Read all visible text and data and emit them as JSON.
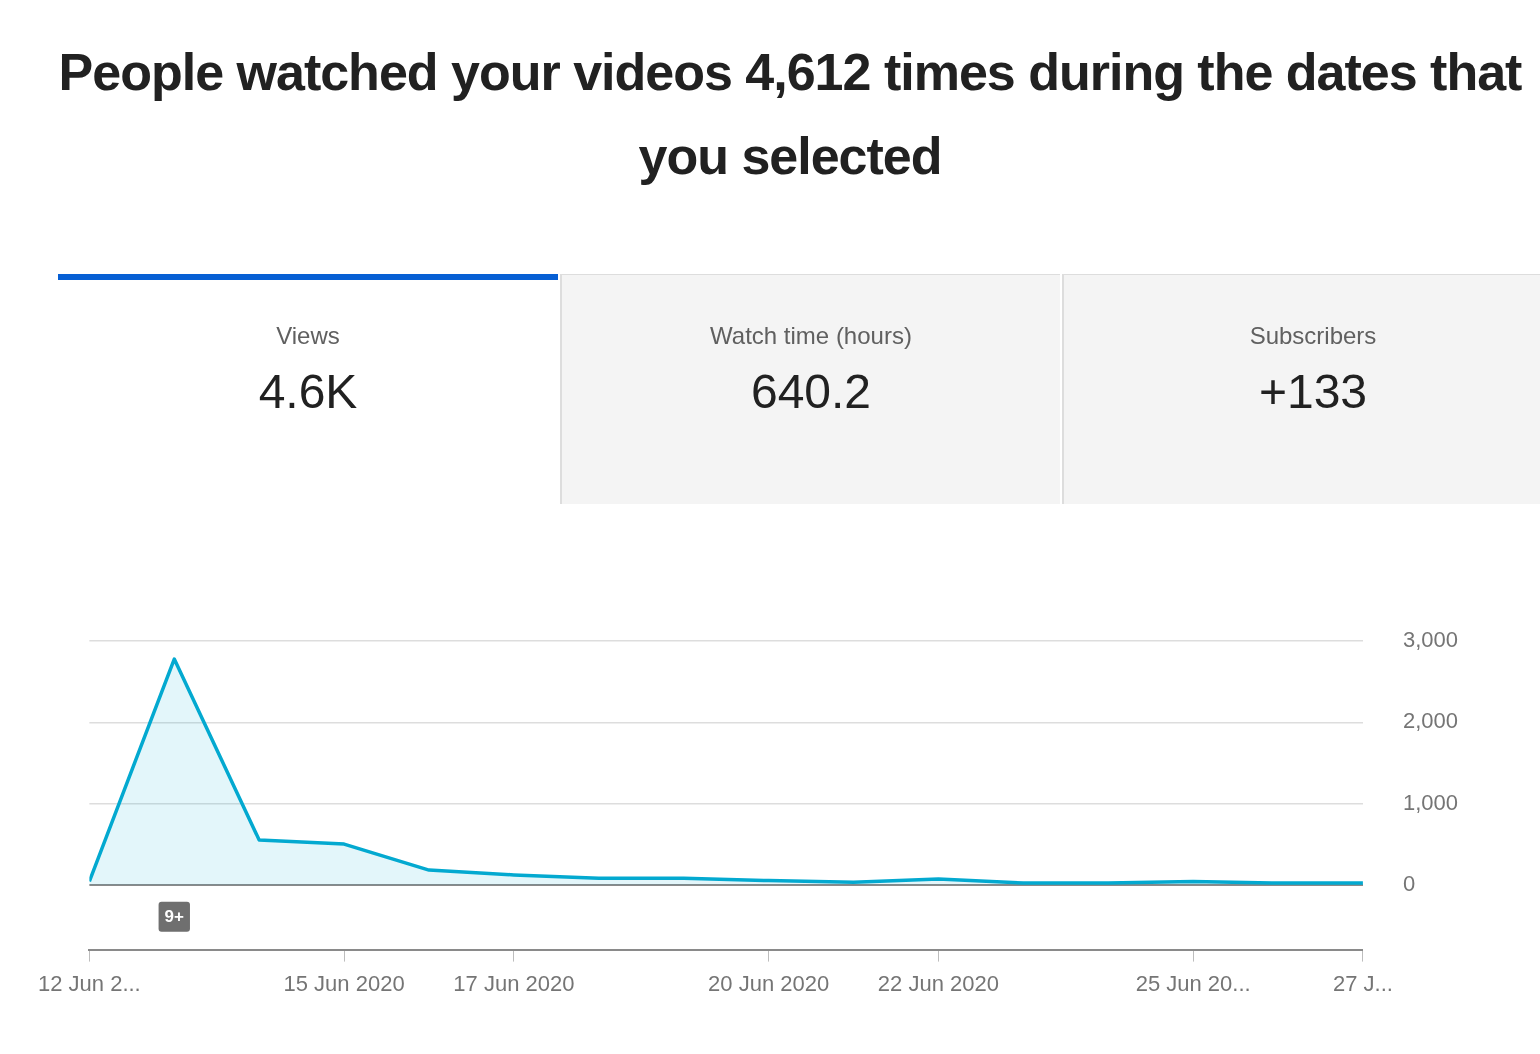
{
  "chart_data": {
    "type": "area",
    "title": "People watched your videos 4,612 times during the dates that you selected",
    "annotations": [
      "Views",
      "4.6K",
      "Watch time (hours)",
      "640.2",
      "Subscribers",
      "+133",
      {
        "text": "9+",
        "x": "2020-06-13"
      }
    ],
    "x": [
      "2020-06-12",
      "2020-06-13",
      "2020-06-14",
      "2020-06-15",
      "2020-06-16",
      "2020-06-17",
      "2020-06-18",
      "2020-06-19",
      "2020-06-20",
      "2020-06-21",
      "2020-06-22",
      "2020-06-23",
      "2020-06-24",
      "2020-06-25",
      "2020-06-26",
      "2020-06-27"
    ],
    "series": [
      {
        "color": "#03a9d0",
        "values": [
          40,
          2780,
          550,
          500,
          180,
          120,
          80,
          80,
          50,
          30,
          70,
          20,
          20,
          40,
          20,
          20
        ]
      }
    ],
    "xlim": [
      "2020-06-12",
      "2020-06-27"
    ],
    "xticks": [
      {
        "value": "2020-06-12",
        "label": "12 Jun 2..."
      },
      {
        "value": "2020-06-15",
        "label": "15 Jun 2020"
      },
      {
        "value": "2020-06-17",
        "label": "17 Jun 2020"
      },
      {
        "value": "2020-06-20",
        "label": "20 Jun 2020"
      },
      {
        "value": "2020-06-22",
        "label": "22 Jun 2020"
      },
      {
        "value": "2020-06-25",
        "label": "25 Jun 20..."
      },
      {
        "value": "2020-06-27",
        "label": "27 J..."
      }
    ],
    "ylim": [
      -800,
      3000
    ],
    "yticks": [
      0,
      {
        "value": 1000,
        "label": "1,000"
      },
      {
        "value": 2000,
        "label": "2,000"
      },
      {
        "value": 3000,
        "label": "3,000"
      }
    ],
    "grid": "y"
  }
}
